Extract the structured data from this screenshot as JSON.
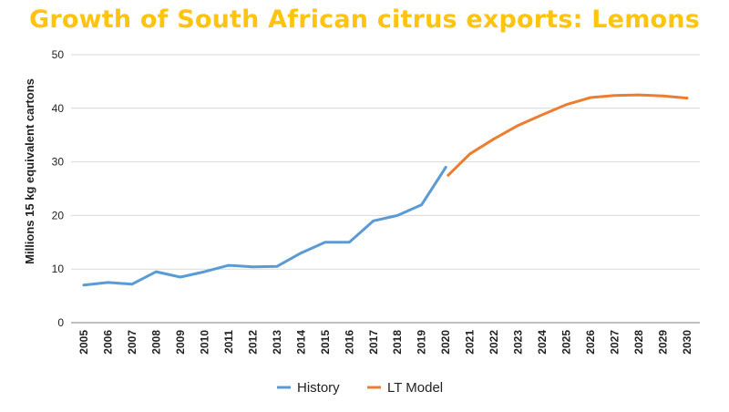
{
  "chart_data": {
    "type": "line",
    "title": "Growth of South African citrus exports: Lemons",
    "xlabel": "",
    "ylabel": "Millions 15 kg equivalent cartons",
    "ylim": [
      0,
      50
    ],
    "yticks": [
      0,
      10,
      20,
      30,
      40,
      50
    ],
    "grid": true,
    "legend_position": "bottom",
    "categories": [
      "2005",
      "2006",
      "2007",
      "2008",
      "2009",
      "2010",
      "2011",
      "2012",
      "2013",
      "2014",
      "2015",
      "2016",
      "2017",
      "2018",
      "2019",
      "2020",
      "2021",
      "2022",
      "2023",
      "2024",
      "2025",
      "2026",
      "2027",
      "2028",
      "2029",
      "2030"
    ],
    "series": [
      {
        "name": "History",
        "color": "#5b9bd5",
        "x": [
          2005,
          2006,
          2007,
          2008,
          2009,
          2010,
          2011,
          2012,
          2013,
          2014,
          2015,
          2016,
          2017,
          2018,
          2019,
          2020
        ],
        "values": [
          7,
          7.5,
          7.2,
          9.5,
          8.5,
          9.5,
          10.7,
          10.4,
          10.5,
          13,
          15,
          15,
          19,
          20,
          22,
          29
        ]
      },
      {
        "name": "LT Model",
        "color": "#ed7d31",
        "x": [
          2020.1,
          2021,
          2022,
          2023,
          2024,
          2025,
          2026,
          2027,
          2028,
          2029,
          2030
        ],
        "values": [
          27.5,
          31.5,
          34.3,
          36.8,
          38.8,
          40.7,
          42,
          42.4,
          42.5,
          42.3,
          41.9
        ]
      }
    ]
  }
}
